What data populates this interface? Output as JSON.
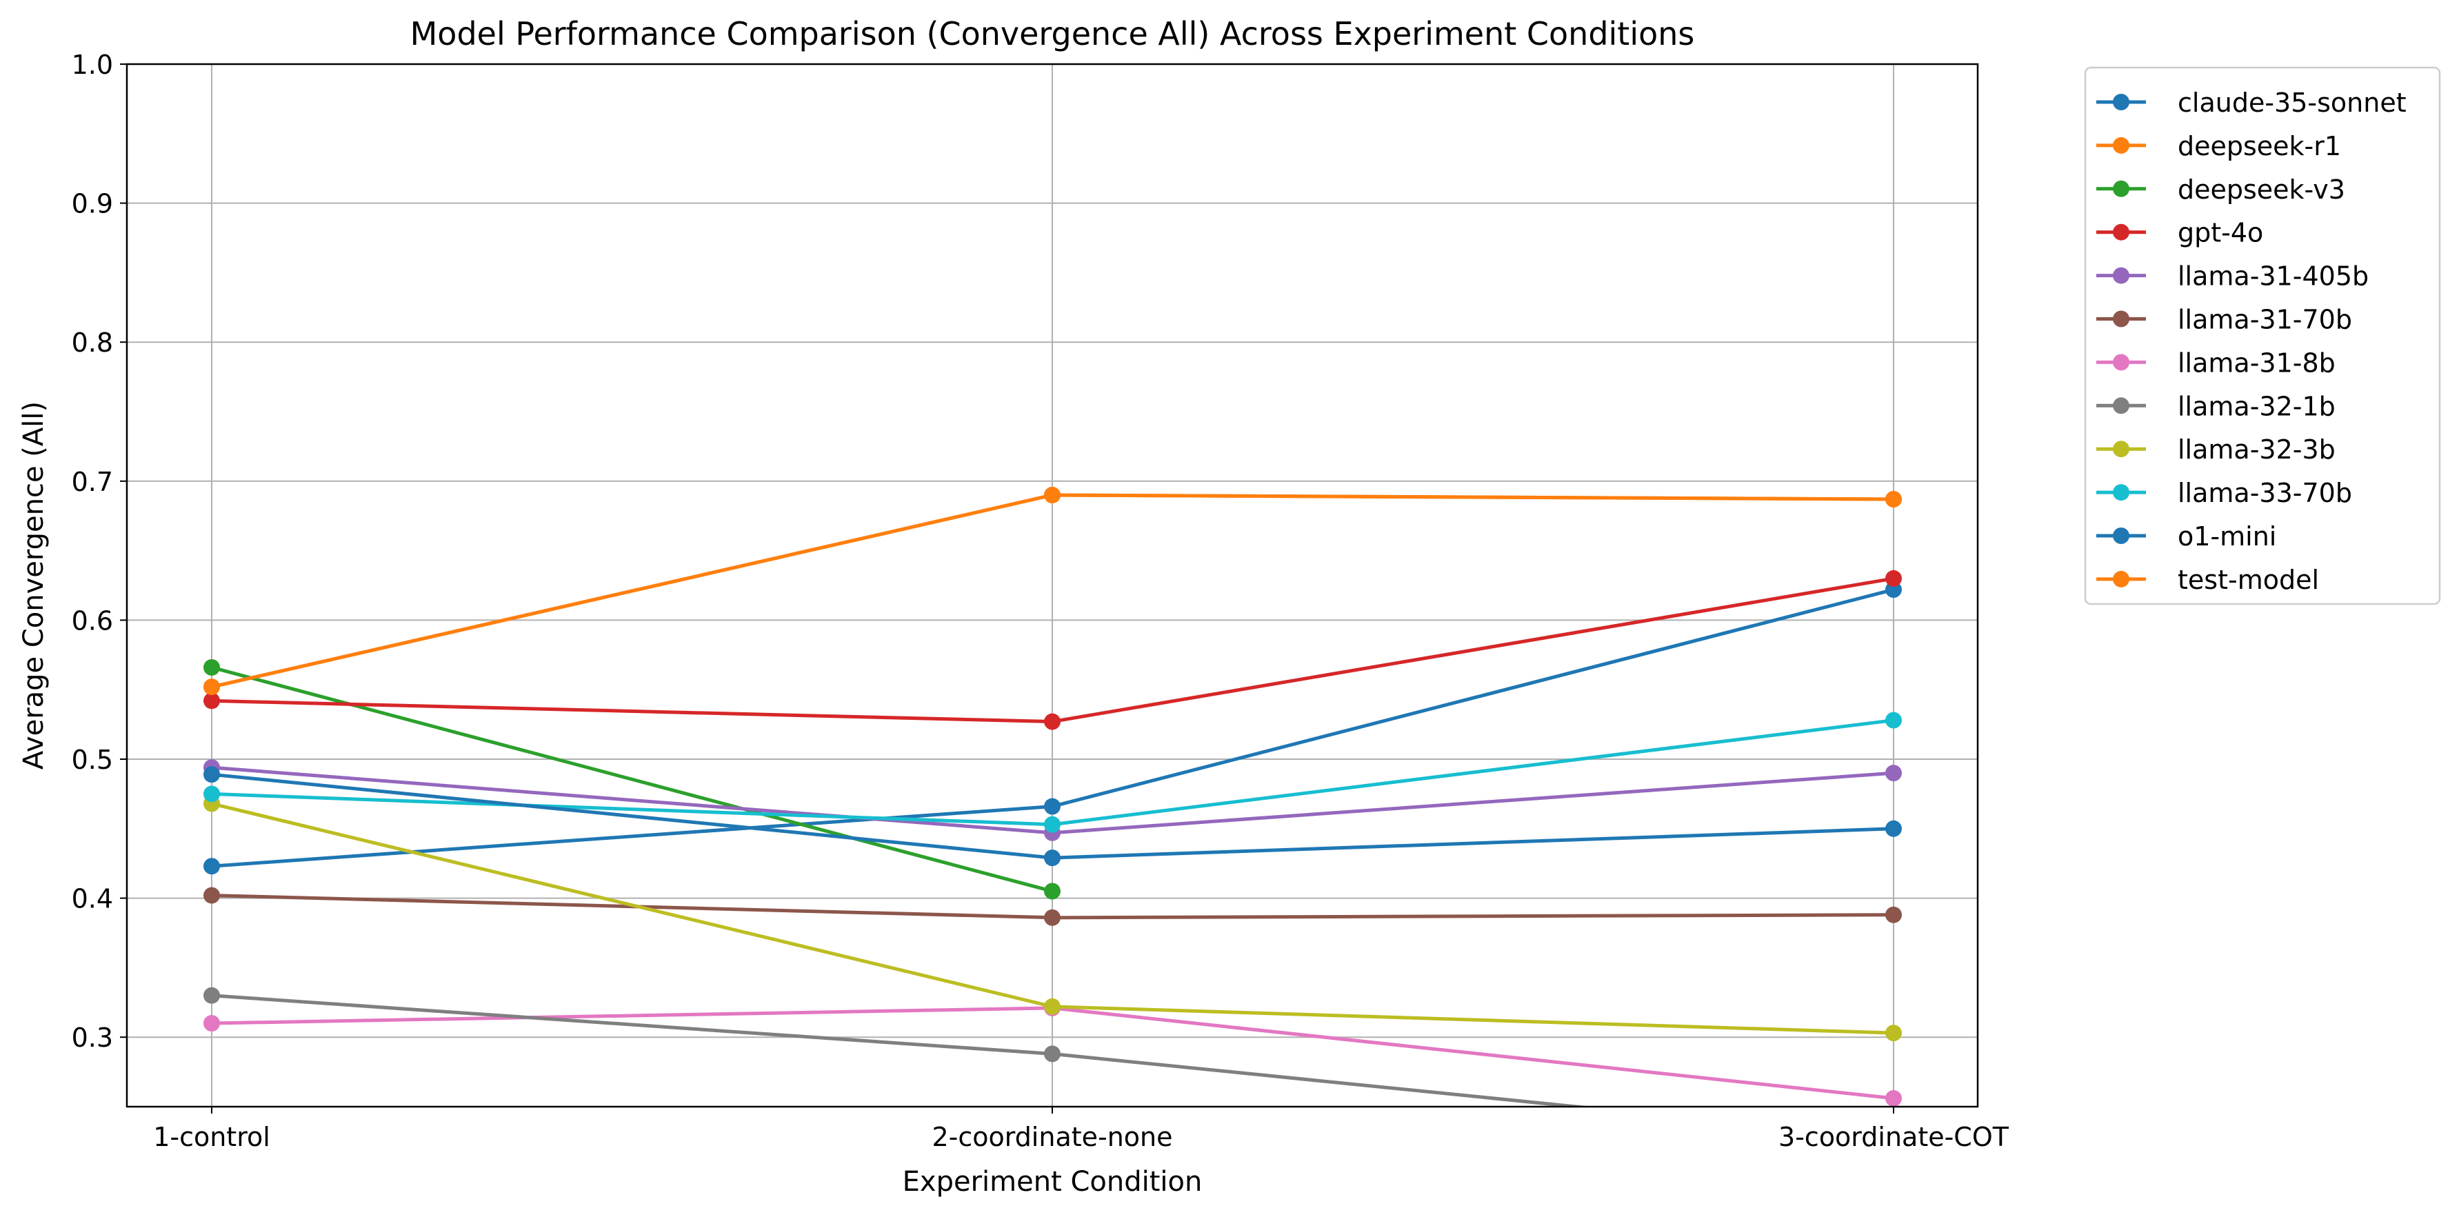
{
  "chart_data": {
    "type": "line",
    "title": "Model Performance Comparison (Convergence All) Across Experiment Conditions",
    "xlabel": "Experiment Condition",
    "ylabel": "Average Convergence (All)",
    "categories": [
      "1-control",
      "2-coordinate-none",
      "3-coordinate-COT"
    ],
    "ylim": [
      0.25,
      1.0
    ],
    "yticks": [
      "0.3",
      "0.4",
      "0.5",
      "0.6",
      "0.7",
      "0.8",
      "0.9",
      "1.0"
    ],
    "grid": true,
    "legend_position": "outside right, top",
    "series": [
      {
        "name": "claude-35-sonnet",
        "color": "#1f77b4",
        "values": [
          0.423,
          0.466,
          0.622
        ]
      },
      {
        "name": "deepseek-r1",
        "color": "#ff7f0e",
        "values": [
          0.552,
          0.69,
          0.687
        ]
      },
      {
        "name": "deepseek-v3",
        "color": "#2ca02c",
        "values": [
          0.566,
          0.405,
          null
        ]
      },
      {
        "name": "gpt-4o",
        "color": "#d62728",
        "values": [
          0.542,
          0.527,
          0.63
        ]
      },
      {
        "name": "llama-31-405b",
        "color": "#9467bd",
        "values": [
          0.494,
          0.447,
          0.49
        ]
      },
      {
        "name": "llama-31-70b",
        "color": "#8c564b",
        "values": [
          0.402,
          0.386,
          0.388
        ]
      },
      {
        "name": "llama-31-8b",
        "color": "#e377c2",
        "values": [
          0.31,
          0.321,
          0.256
        ]
      },
      {
        "name": "llama-32-1b",
        "color": "#7f7f7f",
        "values": [
          0.33,
          0.288,
          0.227
        ]
      },
      {
        "name": "llama-32-3b",
        "color": "#bcbd22",
        "values": [
          0.468,
          0.322,
          0.303
        ]
      },
      {
        "name": "llama-33-70b",
        "color": "#17becf",
        "values": [
          0.475,
          0.453,
          0.528
        ]
      },
      {
        "name": "o1-mini",
        "color": "#1f77b4",
        "values": [
          0.489,
          0.429,
          0.45
        ]
      },
      {
        "name": "test-model",
        "color": "#ff7f0e",
        "values": [
          0.552,
          0.69,
          0.687
        ]
      }
    ]
  }
}
